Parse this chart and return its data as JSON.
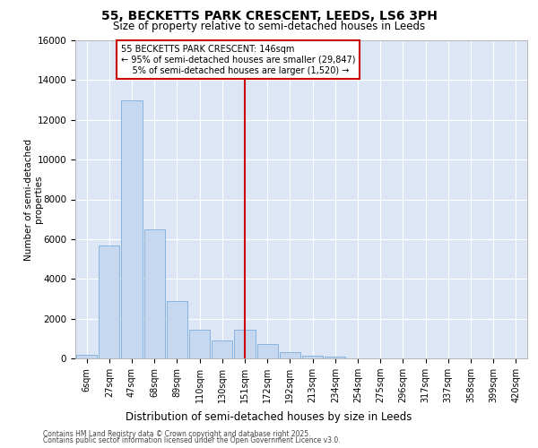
{
  "title_line1": "55, BECKETTS PARK CRESCENT, LEEDS, LS6 3PH",
  "title_line2": "Size of property relative to semi-detached houses in Leeds",
  "xlabel": "Distribution of semi-detached houses by size in Leeds",
  "ylabel": "Number of semi-detached\nproperties",
  "footnote1": "Contains HM Land Registry data © Crown copyright and database right 2025.",
  "footnote2": "Contains public sector information licensed under the Open Government Licence v3.0.",
  "bar_labels": [
    "6sqm",
    "27sqm",
    "47sqm",
    "68sqm",
    "89sqm",
    "110sqm",
    "130sqm",
    "151sqm",
    "172sqm",
    "192sqm",
    "213sqm",
    "234sqm",
    "254sqm",
    "275sqm",
    "296sqm",
    "317sqm",
    "337sqm",
    "358sqm",
    "399sqm",
    "420sqm"
  ],
  "bar_values": [
    200,
    5700,
    13000,
    6500,
    2900,
    1450,
    900,
    1450,
    700,
    300,
    150,
    80,
    0,
    0,
    0,
    0,
    0,
    0,
    0,
    0
  ],
  "bar_color": "#c5d8f0",
  "bar_edgecolor": "#7aacdc",
  "vline_index": 7,
  "vline_color": "#cc0000",
  "annotation_text": "55 BECKETTS PARK CRESCENT: 146sqm\n← 95% of semi-detached houses are smaller (29,847)\n    5% of semi-detached houses are larger (1,520) →",
  "annotation_box_facecolor": "#ffffff",
  "annotation_box_edgecolor": "#cc0000",
  "ylim": [
    0,
    16000
  ],
  "yticks": [
    0,
    2000,
    4000,
    6000,
    8000,
    10000,
    12000,
    14000,
    16000
  ],
  "grid_color": "#ffffff",
  "plot_bg": "#dce6f5",
  "fig_bg": "#ffffff",
  "title1_fontsize": 10,
  "title2_fontsize": 8.5,
  "ylabel_fontsize": 7.5,
  "xlabel_fontsize": 8.5,
  "tick_fontsize": 7,
  "ytick_fontsize": 7.5,
  "annot_fontsize": 7,
  "footnote_fontsize": 5.5
}
